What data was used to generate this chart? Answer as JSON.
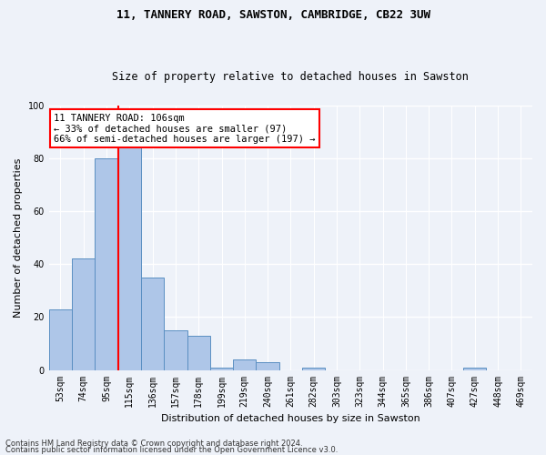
{
  "title1": "11, TANNERY ROAD, SAWSTON, CAMBRIDGE, CB22 3UW",
  "title2": "Size of property relative to detached houses in Sawston",
  "xlabel": "Distribution of detached houses by size in Sawston",
  "ylabel": "Number of detached properties",
  "categories": [
    "53sqm",
    "74sqm",
    "95sqm",
    "115sqm",
    "136sqm",
    "157sqm",
    "178sqm",
    "199sqm",
    "219sqm",
    "240sqm",
    "261sqm",
    "282sqm",
    "303sqm",
    "323sqm",
    "344sqm",
    "365sqm",
    "386sqm",
    "407sqm",
    "427sqm",
    "448sqm",
    "469sqm"
  ],
  "values": [
    23,
    42,
    80,
    84,
    35,
    15,
    13,
    1,
    4,
    3,
    0,
    1,
    0,
    0,
    0,
    0,
    0,
    0,
    1,
    0,
    0
  ],
  "bar_color": "#aec6e8",
  "bar_edge_color": "#5a8fc2",
  "redline_x": 2.5,
  "annotation_text_line1": "11 TANNERY ROAD: 106sqm",
  "annotation_text_line2": "← 33% of detached houses are smaller (97)",
  "annotation_text_line3": "66% of semi-detached houses are larger (197) →",
  "annotation_box_color": "white",
  "annotation_box_edge_color": "red",
  "redline_color": "red",
  "ylim": [
    0,
    100
  ],
  "yticks": [
    0,
    20,
    40,
    60,
    80,
    100
  ],
  "footer1": "Contains HM Land Registry data © Crown copyright and database right 2024.",
  "footer2": "Contains public sector information licensed under the Open Government Licence v3.0.",
  "background_color": "#eef2f9",
  "grid_color": "white",
  "title1_fontsize": 9,
  "title2_fontsize": 8.5,
  "tick_fontsize": 7,
  "ylabel_fontsize": 8,
  "xlabel_fontsize": 8,
  "annotation_fontsize": 7.5,
  "footer_fontsize": 6
}
